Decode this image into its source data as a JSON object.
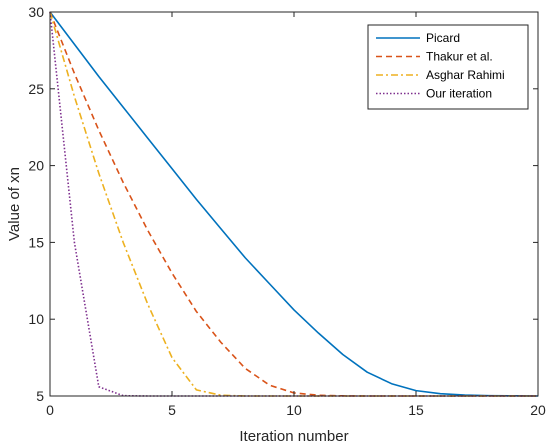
{
  "chart_data": {
    "type": "line",
    "xlabel": "Iteration number",
    "ylabel": "Value of xn",
    "xlim": [
      0,
      20
    ],
    "ylim": [
      5,
      30
    ],
    "xticks": [
      0,
      5,
      10,
      15,
      20
    ],
    "yticks": [
      5,
      10,
      15,
      20,
      25,
      30
    ],
    "grid": false,
    "legend_position": "top-right",
    "series": [
      {
        "name": "Picard",
        "color": "#0072BD",
        "style": "solid",
        "x": [
          0,
          1,
          2,
          3,
          4,
          5,
          6,
          7,
          8,
          9,
          10,
          11,
          12,
          13,
          14,
          15,
          16,
          17,
          18,
          19,
          20
        ],
        "y": [
          30,
          27.9,
          25.8,
          23.8,
          21.8,
          19.8,
          17.8,
          15.9,
          14.0,
          12.3,
          10.6,
          9.1,
          7.7,
          6.55,
          5.8,
          5.35,
          5.15,
          5.06,
          5.02,
          5.01,
          5.0
        ]
      },
      {
        "name": "Thakur et al.",
        "color": "#D95319",
        "style": "dashed",
        "x": [
          0,
          1,
          2,
          3,
          4,
          5,
          6,
          7,
          8,
          9,
          10,
          11,
          12,
          13,
          14,
          15,
          16,
          17,
          18,
          19,
          20
        ],
        "y": [
          30,
          26.0,
          22.3,
          18.9,
          15.8,
          13.0,
          10.5,
          8.5,
          6.8,
          5.7,
          5.2,
          5.05,
          5.01,
          5.0,
          5.0,
          5.0,
          5.0,
          5.0,
          5.0,
          5.0,
          5.0
        ]
      },
      {
        "name": "Asghar Rahimi",
        "color": "#EDB120",
        "style": "dashdot",
        "x": [
          0,
          1,
          2,
          3,
          4,
          5,
          6,
          7,
          8,
          9,
          10,
          11,
          12,
          13,
          14,
          15,
          16,
          17,
          18,
          19,
          20
        ],
        "y": [
          30,
          24.5,
          19.5,
          15.0,
          11.0,
          7.5,
          5.4,
          5.05,
          5.0,
          5.0,
          5.0,
          5.0,
          5.0,
          5.0,
          5.0,
          5.0,
          5.0,
          5.0,
          5.0,
          5.0,
          5.0
        ]
      },
      {
        "name": "Our iteration",
        "color": "#7E2F8E",
        "style": "dotted",
        "x": [
          0,
          1,
          2,
          3,
          4,
          5,
          6,
          7,
          8,
          9,
          10,
          11,
          12,
          13,
          14,
          15,
          16,
          17,
          18,
          19,
          20
        ],
        "y": [
          30,
          15.0,
          5.6,
          5.02,
          5.0,
          5.0,
          5.0,
          5.0,
          5.0,
          5.0,
          5.0,
          5.0,
          5.0,
          5.0,
          5.0,
          5.0,
          5.0,
          5.0,
          5.0,
          5.0,
          5.0
        ]
      }
    ]
  }
}
